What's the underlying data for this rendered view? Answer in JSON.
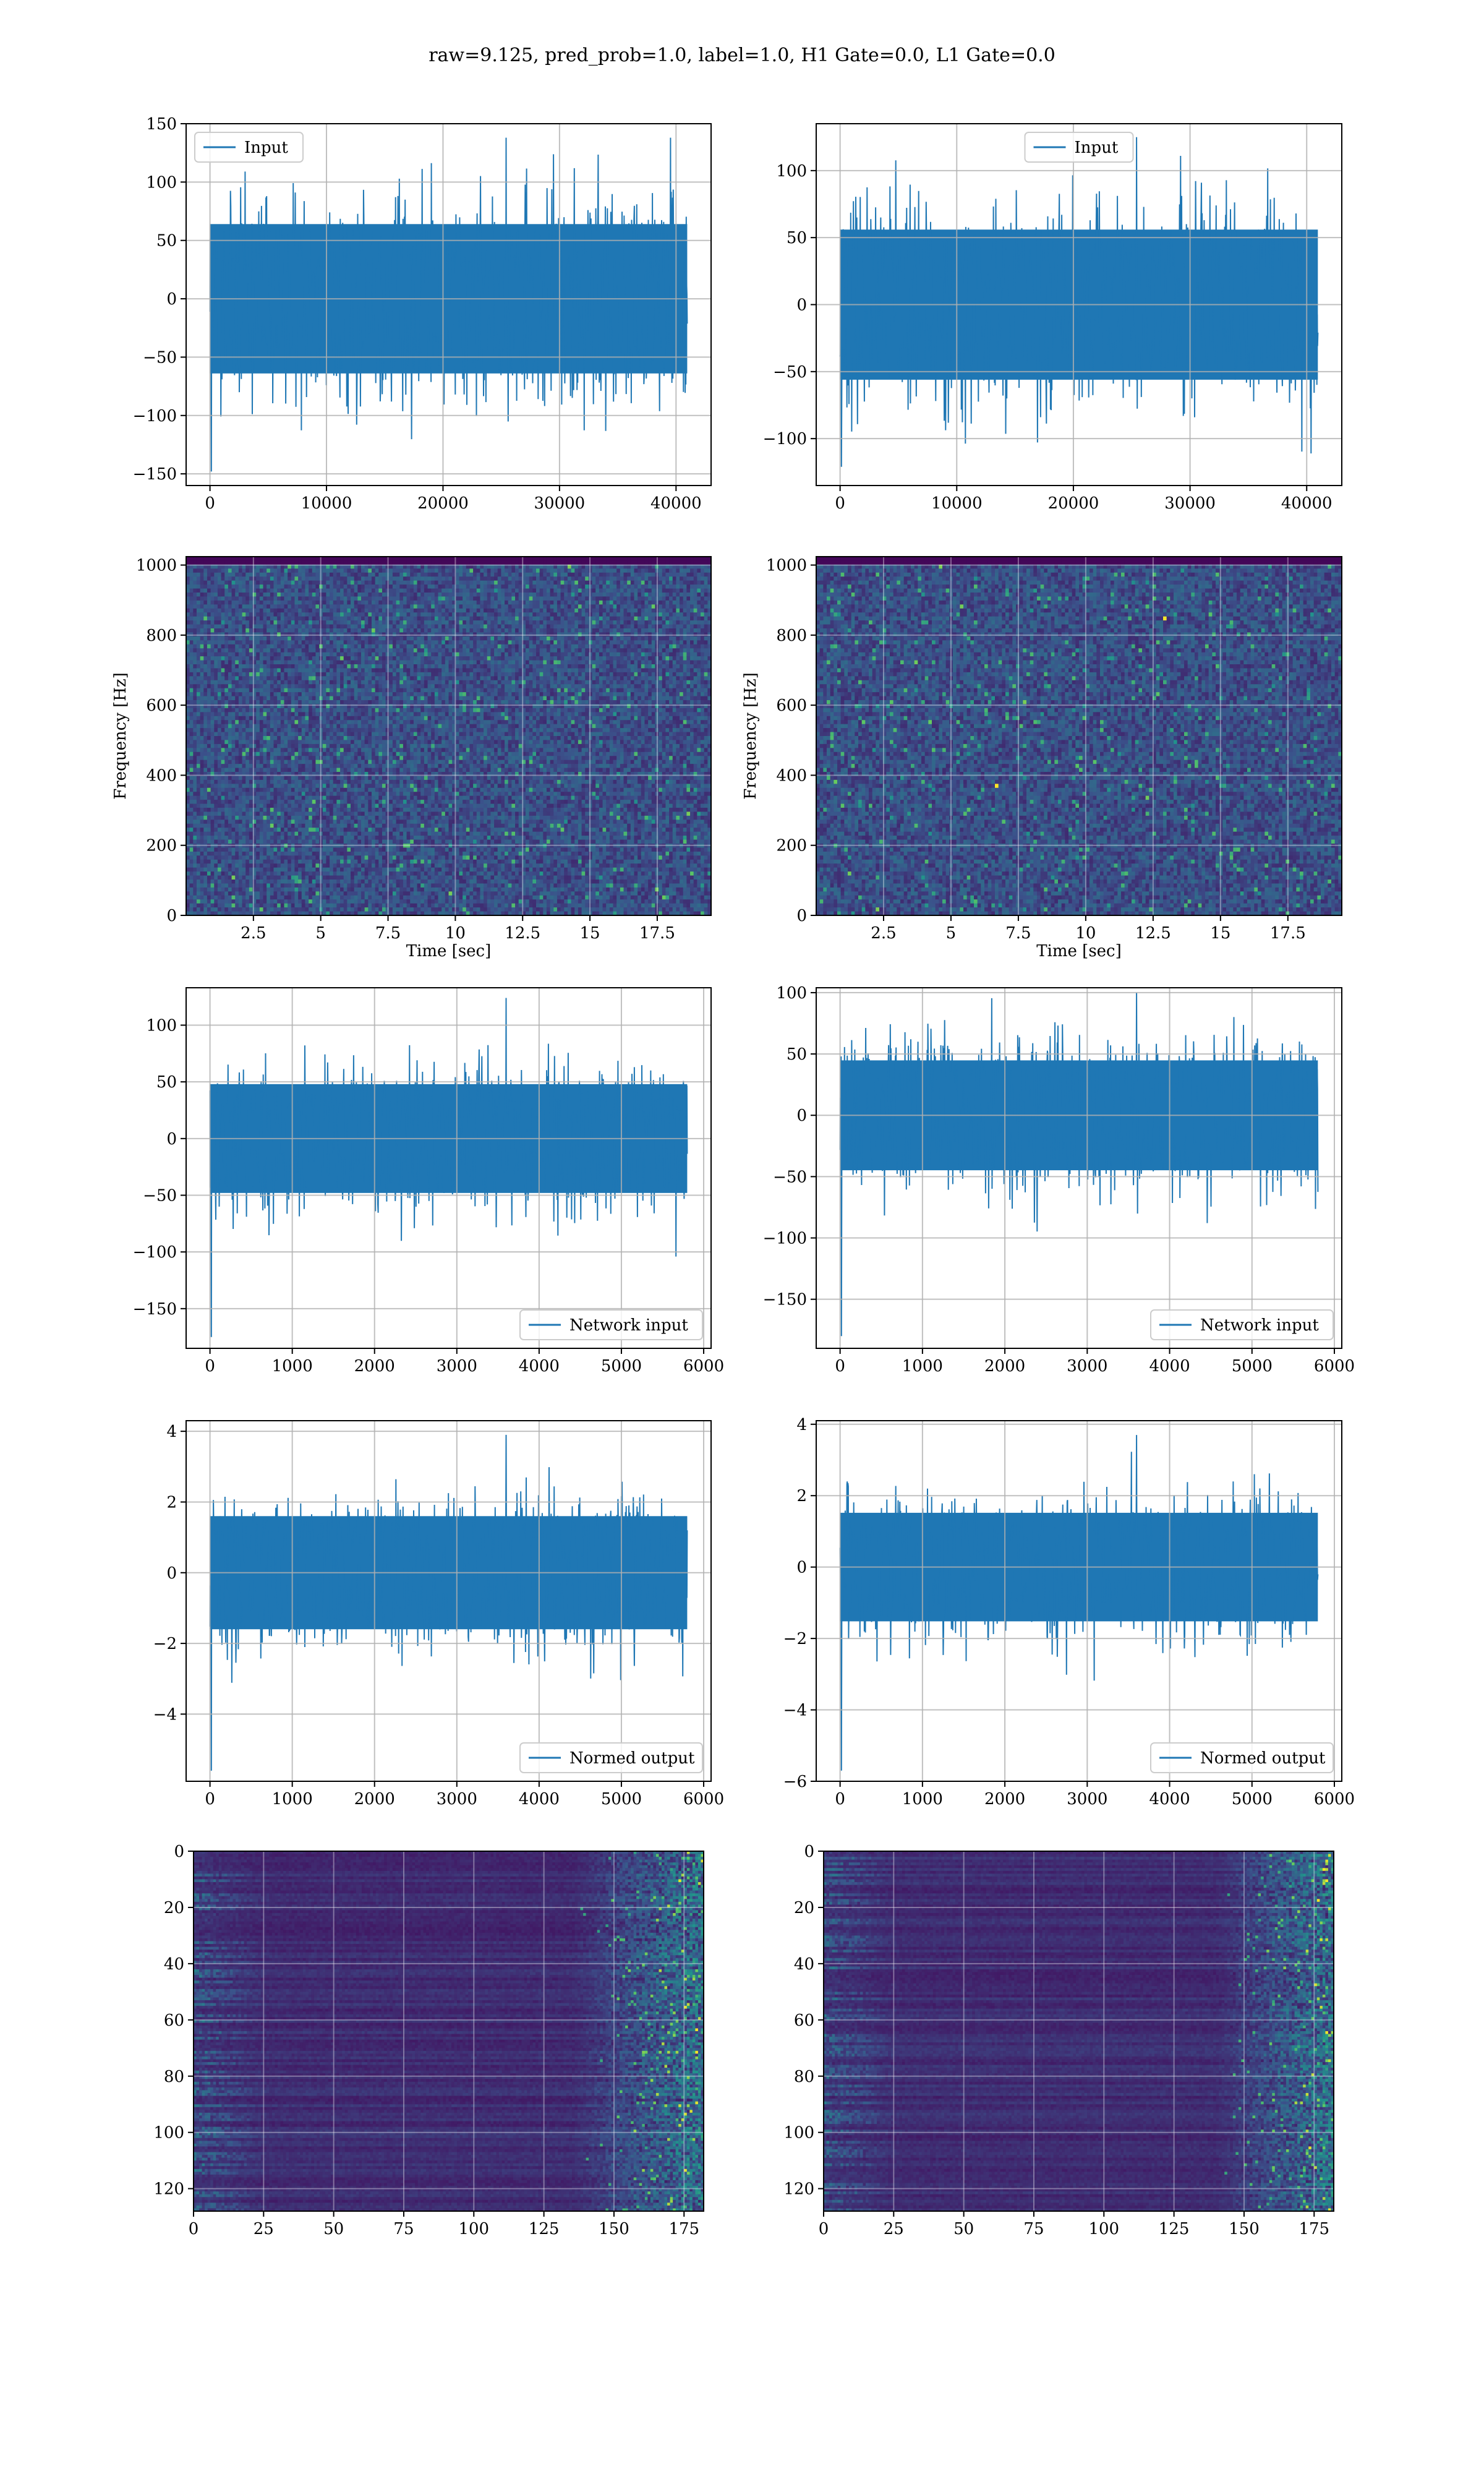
{
  "figure": {
    "title": "raw=9.125, pred_prob=1.0, label=1.0, H1 Gate=0.0, L1 Gate=0.0"
  },
  "chart_data": [
    {
      "id": "input-h1",
      "type": "line",
      "legend": "Input",
      "legend_pos": "upper-left",
      "x_range": [
        0,
        40960
      ],
      "xlim": [
        -2048,
        43008
      ],
      "ylim": [
        -160,
        150
      ],
      "xticks": [
        0,
        10000,
        20000,
        30000,
        40000
      ],
      "yticks": [
        -150,
        -100,
        -50,
        0,
        50,
        100,
        150
      ],
      "xlabel": "",
      "ylabel": "",
      "grid": true,
      "color": "#1f77b4",
      "noise": {
        "band": 40,
        "peak_max": 138,
        "peak_min": -148,
        "seed": 11
      }
    },
    {
      "id": "input-l1",
      "type": "line",
      "legend": "Input",
      "legend_pos": "upper-center",
      "x_range": [
        0,
        40960
      ],
      "xlim": [
        -2048,
        43008
      ],
      "ylim": [
        -135,
        135
      ],
      "xticks": [
        0,
        10000,
        20000,
        30000,
        40000
      ],
      "yticks": [
        -100,
        -50,
        0,
        50,
        100
      ],
      "xlabel": "",
      "ylabel": "",
      "grid": true,
      "color": "#1f77b4",
      "noise": {
        "band": 35,
        "peak_max": 125,
        "peak_min": -121,
        "seed": 23
      }
    },
    {
      "id": "spec-h1",
      "type": "heatmap",
      "colormap": "viridis",
      "xlim": [
        0,
        19.5
      ],
      "ylim": [
        0,
        1024
      ],
      "xticks": [
        2.5,
        5.0,
        7.5,
        10.0,
        12.5,
        15.0,
        17.5
      ],
      "yticks": [
        0,
        200,
        400,
        600,
        800,
        1000
      ],
      "xlabel": "Time [sec]",
      "ylabel": "Frequency [Hz]",
      "grid": true,
      "seed": 37
    },
    {
      "id": "spec-l1",
      "type": "heatmap",
      "colormap": "viridis",
      "xlim": [
        0,
        19.5
      ],
      "ylim": [
        0,
        1024
      ],
      "xticks": [
        2.5,
        5.0,
        7.5,
        10.0,
        12.5,
        15.0,
        17.5
      ],
      "yticks": [
        0,
        200,
        400,
        600,
        800,
        1000
      ],
      "xlabel": "Time [sec]",
      "ylabel": "Frequency [Hz]",
      "grid": true,
      "seed": 41
    },
    {
      "id": "net-h1",
      "type": "line",
      "legend": "Network input",
      "legend_pos": "lower-right",
      "x_range": [
        0,
        5800
      ],
      "xlim": [
        -290,
        6090
      ],
      "ylim": [
        -185,
        133
      ],
      "xticks": [
        0,
        1000,
        2000,
        3000,
        4000,
        5000,
        6000
      ],
      "yticks": [
        -150,
        -100,
        -50,
        0,
        50,
        100
      ],
      "xlabel": "",
      "ylabel": "",
      "grid": true,
      "color": "#1f77b4",
      "noise": {
        "band": 30,
        "peak_max": 124,
        "peak_min": -175,
        "seed": 53
      }
    },
    {
      "id": "net-l1",
      "type": "line",
      "legend": "Network input",
      "legend_pos": "lower-right",
      "x_range": [
        0,
        5800
      ],
      "xlim": [
        -290,
        6090
      ],
      "ylim": [
        -190,
        104
      ],
      "xticks": [
        0,
        1000,
        2000,
        3000,
        4000,
        5000,
        6000
      ],
      "yticks": [
        -150,
        -100,
        -50,
        0,
        50,
        100
      ],
      "xlabel": "",
      "ylabel": "",
      "grid": true,
      "color": "#1f77b4",
      "noise": {
        "band": 28,
        "peak_max": 100,
        "peak_min": -180,
        "seed": 67
      }
    },
    {
      "id": "norm-h1",
      "type": "line",
      "legend": "Normed output",
      "legend_pos": "lower-right",
      "x_range": [
        0,
        5800
      ],
      "xlim": [
        -290,
        6090
      ],
      "ylim": [
        -5.9,
        4.3
      ],
      "xticks": [
        0,
        1000,
        2000,
        3000,
        4000,
        5000,
        6000
      ],
      "yticks": [
        -4,
        -2,
        0,
        2,
        4
      ],
      "xlabel": "",
      "ylabel": "",
      "grid": true,
      "color": "#1f77b4",
      "noise": {
        "band": 1.0,
        "peak_max": 3.9,
        "peak_min": -5.6,
        "seed": 79
      }
    },
    {
      "id": "norm-l1",
      "type": "line",
      "legend": "Normed output",
      "legend_pos": "lower-right",
      "x_range": [
        0,
        5800
      ],
      "xlim": [
        -290,
        6090
      ],
      "ylim": [
        -6.0,
        4.1
      ],
      "xticks": [
        0,
        1000,
        2000,
        3000,
        4000,
        5000,
        6000
      ],
      "yticks": [
        -6,
        -4,
        -2,
        0,
        2,
        4
      ],
      "xlabel": "",
      "ylabel": "",
      "grid": true,
      "color": "#1f77b4",
      "noise": {
        "band": 0.95,
        "peak_max": 3.7,
        "peak_min": -5.7,
        "seed": 83
      }
    },
    {
      "id": "feat-h1",
      "type": "heatmap",
      "colormap": "viridis",
      "xlim": [
        0,
        182
      ],
      "ylim": [
        128,
        0
      ],
      "xticks": [
        0,
        25,
        50,
        75,
        100,
        125,
        150,
        175
      ],
      "yticks": [
        0,
        20,
        40,
        60,
        80,
        100,
        120
      ],
      "xlabel": "",
      "ylabel": "",
      "grid": true,
      "hot_start": 145,
      "seed": 97
    },
    {
      "id": "feat-l1",
      "type": "heatmap",
      "colormap": "viridis",
      "xlim": [
        0,
        182
      ],
      "ylim": [
        128,
        0
      ],
      "xticks": [
        0,
        25,
        50,
        75,
        100,
        125,
        150,
        175
      ],
      "yticks": [
        0,
        20,
        40,
        60,
        80,
        100,
        120
      ],
      "xlabel": "",
      "ylabel": "",
      "grid": true,
      "hot_start": 150,
      "seed": 101
    }
  ]
}
